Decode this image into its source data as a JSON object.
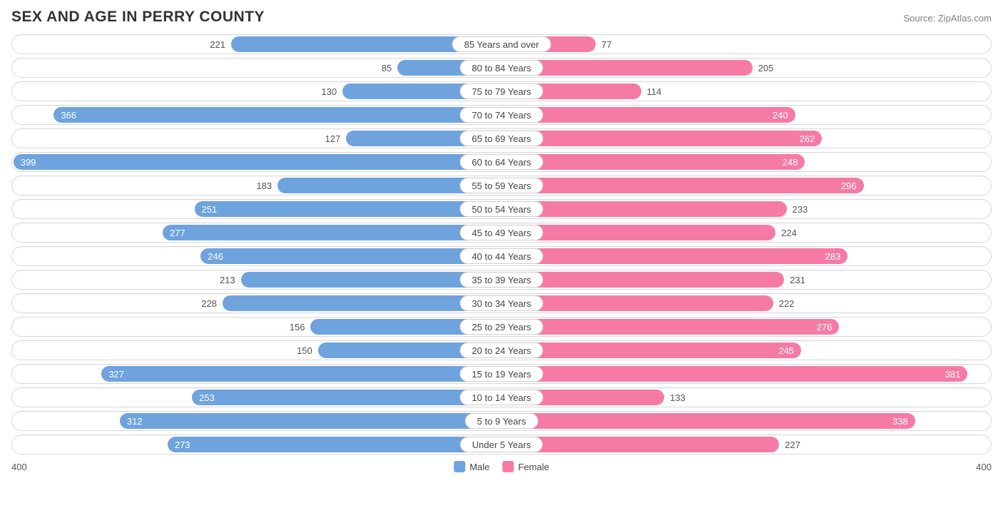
{
  "title": "SEX AND AGE IN PERRY COUNTY",
  "source": "Source: ZipAtlas.com",
  "chart": {
    "type": "diverging-bar",
    "axis_max": 400,
    "axis_label_left": "400",
    "axis_label_right": "400",
    "inside_label_threshold": 235,
    "colors": {
      "male": "#6ea3de",
      "female": "#f57ba4",
      "male_text": "#ffffff",
      "female_text": "#ffffff",
      "outside_text": "#555555",
      "row_border": "#d8d8d8",
      "background": "#ffffff"
    },
    "legend": [
      {
        "label": "Male",
        "color": "#6ea3de"
      },
      {
        "label": "Female",
        "color": "#f57ba4"
      }
    ],
    "rows": [
      {
        "age": "85 Years and over",
        "male": 221,
        "female": 77
      },
      {
        "age": "80 to 84 Years",
        "male": 85,
        "female": 205
      },
      {
        "age": "75 to 79 Years",
        "male": 130,
        "female": 114
      },
      {
        "age": "70 to 74 Years",
        "male": 366,
        "female": 240
      },
      {
        "age": "65 to 69 Years",
        "male": 127,
        "female": 262
      },
      {
        "age": "60 to 64 Years",
        "male": 399,
        "female": 248
      },
      {
        "age": "55 to 59 Years",
        "male": 183,
        "female": 296
      },
      {
        "age": "50 to 54 Years",
        "male": 251,
        "female": 233
      },
      {
        "age": "45 to 49 Years",
        "male": 277,
        "female": 224
      },
      {
        "age": "40 to 44 Years",
        "male": 246,
        "female": 283
      },
      {
        "age": "35 to 39 Years",
        "male": 213,
        "female": 231
      },
      {
        "age": "30 to 34 Years",
        "male": 228,
        "female": 222
      },
      {
        "age": "25 to 29 Years",
        "male": 156,
        "female": 276
      },
      {
        "age": "20 to 24 Years",
        "male": 150,
        "female": 245
      },
      {
        "age": "15 to 19 Years",
        "male": 327,
        "female": 381
      },
      {
        "age": "10 to 14 Years",
        "male": 253,
        "female": 133
      },
      {
        "age": "5 to 9 Years",
        "male": 312,
        "female": 338
      },
      {
        "age": "Under 5 Years",
        "male": 273,
        "female": 227
      }
    ]
  }
}
